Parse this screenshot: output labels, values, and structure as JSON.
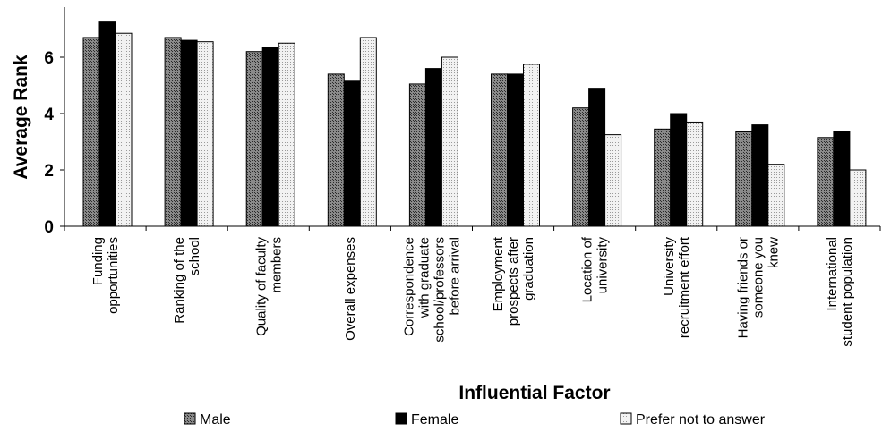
{
  "chart_data": {
    "type": "bar",
    "title": "",
    "xlabel": "Influential Factor",
    "ylabel": "Average Rank",
    "ylim": [
      0,
      7.6
    ],
    "yticks": [
      0,
      2,
      4,
      6
    ],
    "grid": false,
    "legend_position": "bottom",
    "categories": [
      [
        "Funding",
        "opportunities"
      ],
      [
        "Ranking of the",
        "school"
      ],
      [
        "Quality of faculty",
        "members"
      ],
      [
        "Overall expenses"
      ],
      [
        "Correspondence",
        "with graduate",
        "school/professors",
        "before arrival"
      ],
      [
        "Employment",
        "prospects after",
        "graduation"
      ],
      [
        "Location of",
        "university"
      ],
      [
        "University",
        "recruitment effort"
      ],
      [
        "Having friends or",
        "someone you",
        "knew"
      ],
      [
        "International",
        "student population"
      ]
    ],
    "series": [
      {
        "name": "Male",
        "color": "#6e6e6e",
        "pattern": "crosshatch",
        "values": [
          6.7,
          6.7,
          6.2,
          5.4,
          5.05,
          5.4,
          4.2,
          3.45,
          3.35,
          3.15
        ]
      },
      {
        "name": "Female",
        "color": "#000000",
        "pattern": "solid",
        "values": [
          7.25,
          6.6,
          6.35,
          5.15,
          5.6,
          5.4,
          4.9,
          4.0,
          3.6,
          3.35
        ]
      },
      {
        "name": "Prefer not to answer",
        "color": "#e6e6e6",
        "pattern": "dots",
        "values": [
          6.85,
          6.55,
          6.5,
          6.7,
          6.0,
          5.75,
          3.25,
          3.7,
          2.2,
          2.0
        ]
      }
    ]
  }
}
